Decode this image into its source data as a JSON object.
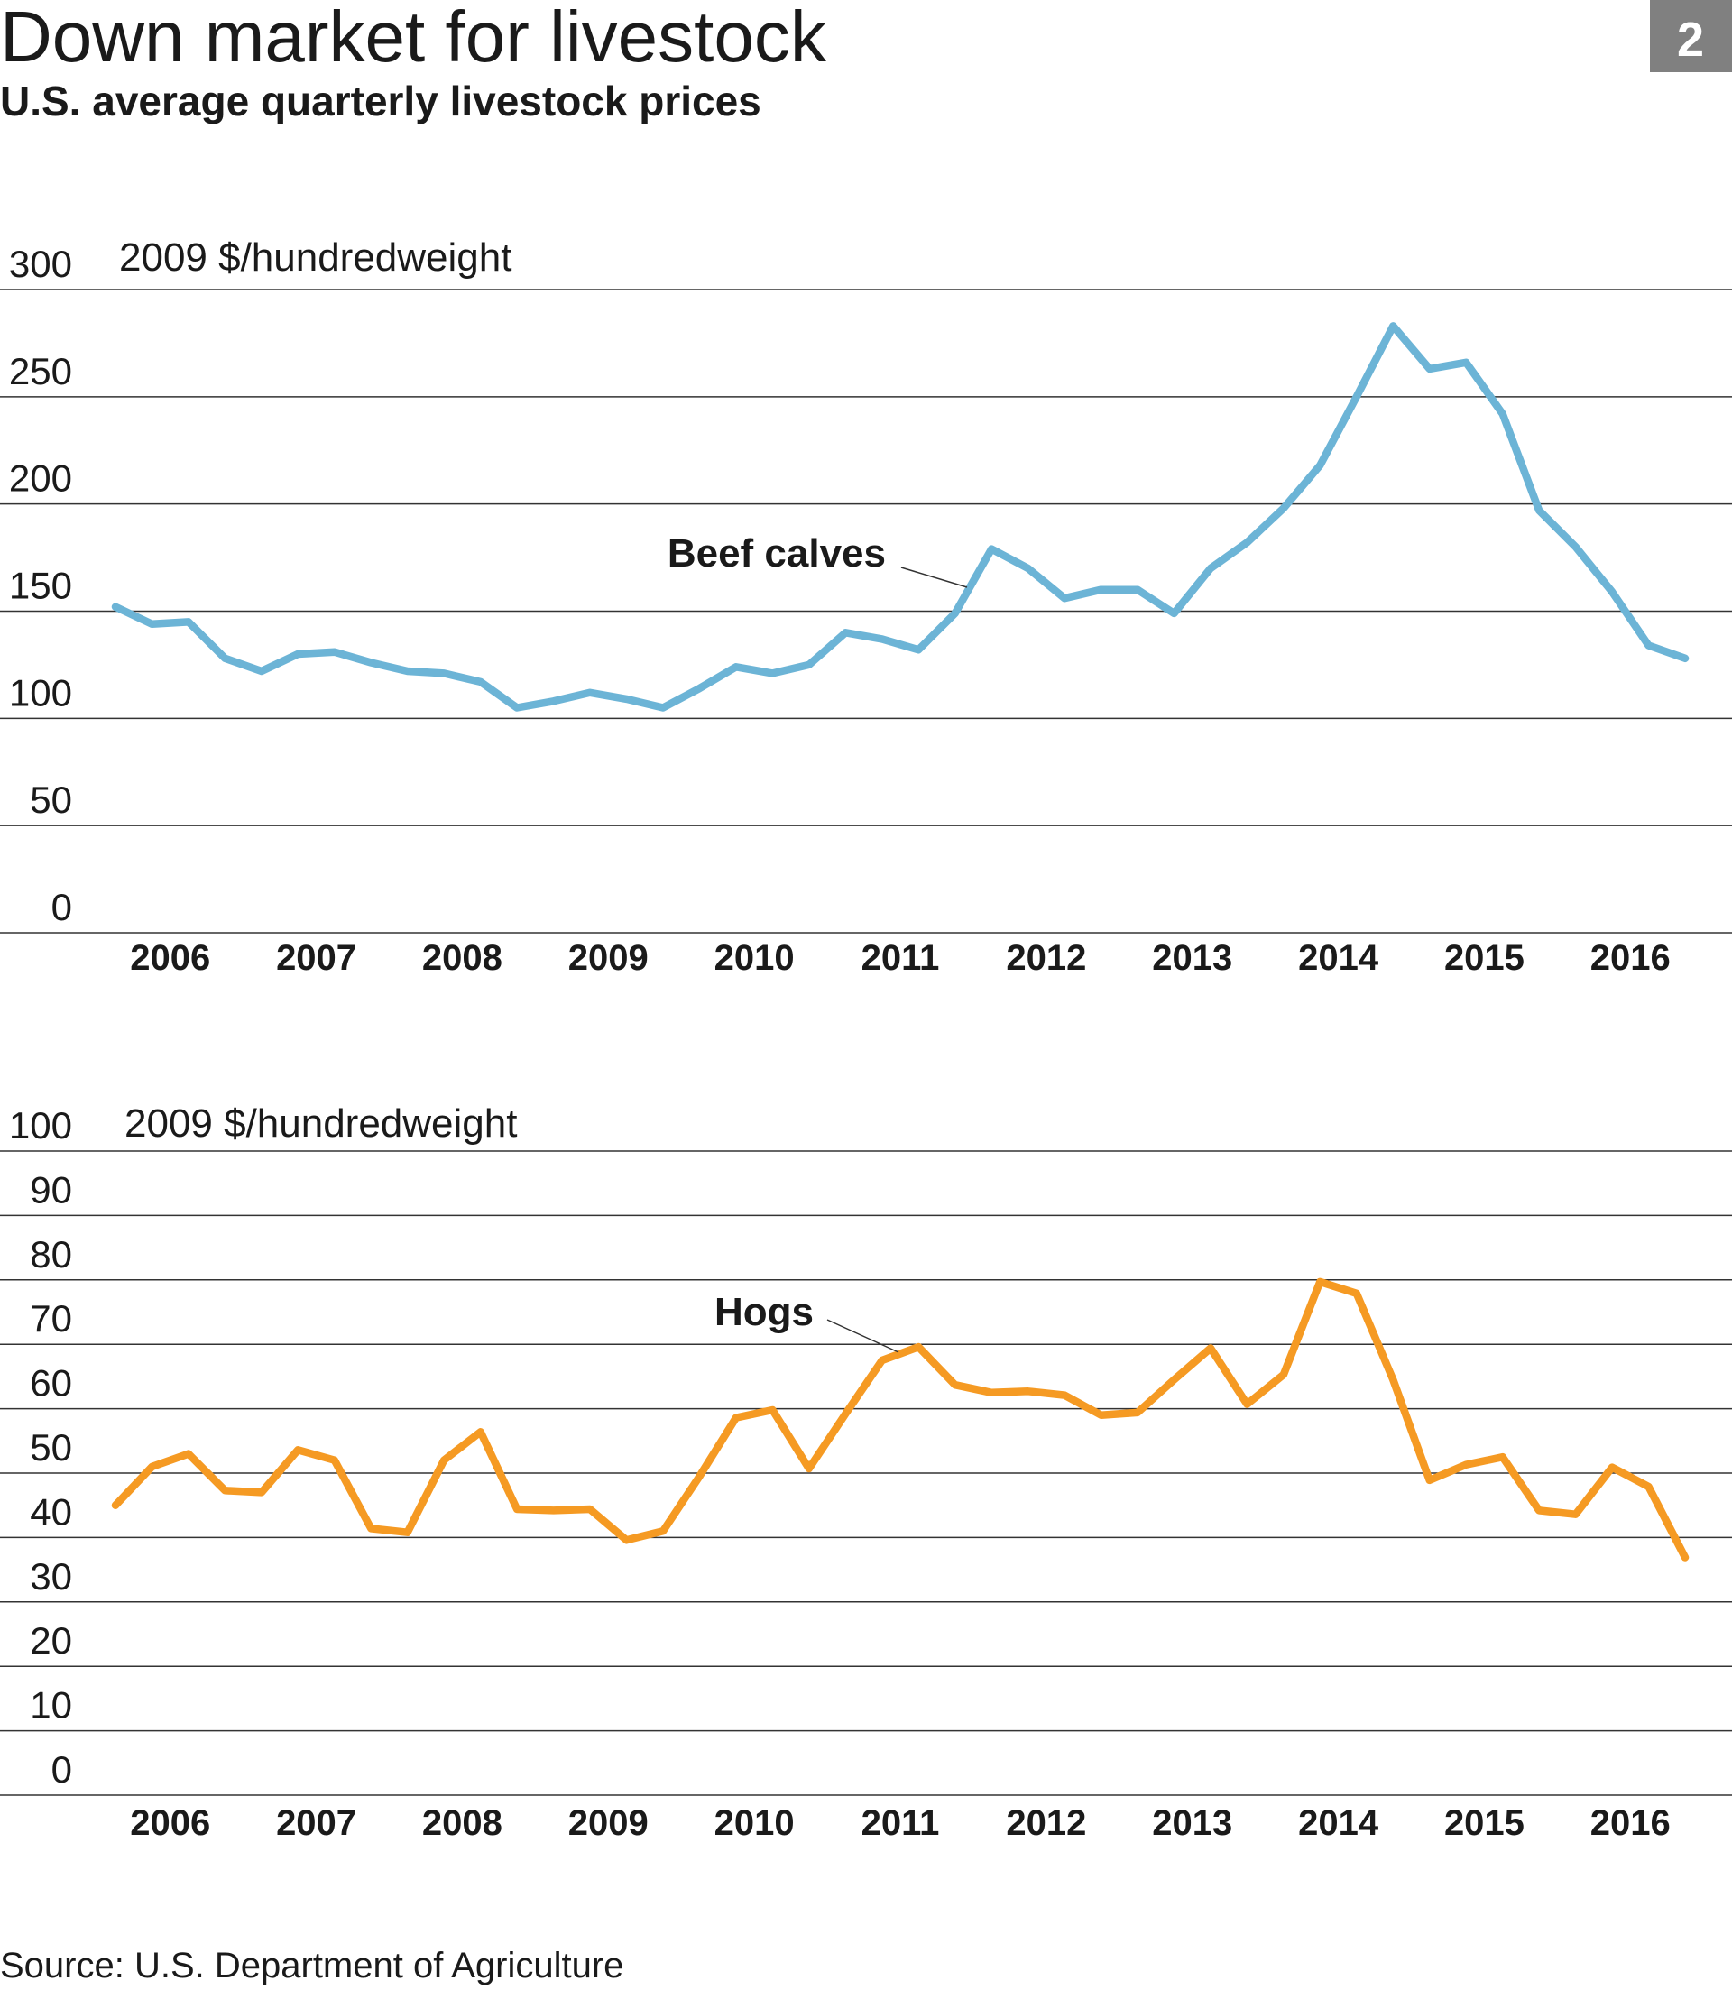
{
  "title": "Down market for livestock",
  "subtitle": "U.S. average quarterly livestock prices",
  "badge": "2",
  "source": "Source: U.S. Department of Agriculture",
  "chart_data": [
    {
      "type": "line",
      "y_label": "2009 $/hundredweight",
      "categories": [
        null,
        "2006",
        null,
        null,
        null,
        "2007",
        null,
        null,
        null,
        "2008",
        null,
        null,
        null,
        "2009",
        null,
        null,
        null,
        "2010",
        null,
        null,
        null,
        "2011",
        null,
        null,
        null,
        "2012",
        null,
        null,
        null,
        "2013",
        null,
        null,
        null,
        "2014",
        null,
        null,
        null,
        "2015",
        null,
        null,
        null,
        "2016",
        null,
        null
      ],
      "series": [
        {
          "name": "Beef calves",
          "color": "#6cb4d6",
          "values": [
            152,
            144,
            145,
            128,
            122,
            130,
            131,
            126,
            122,
            121,
            117,
            105,
            108,
            112,
            109,
            105,
            114,
            124,
            121,
            125,
            140,
            137,
            132,
            149,
            179,
            170,
            156,
            160,
            160,
            149,
            170,
            182,
            198,
            218,
            250,
            283,
            263,
            266,
            242,
            197,
            180,
            159,
            134,
            128
          ]
        }
      ],
      "ylim": [
        0,
        300
      ],
      "yticks": [
        0,
        50,
        100,
        150,
        200,
        250,
        300
      ]
    },
    {
      "type": "line",
      "y_label": "2009 $/hundredweight",
      "categories": [
        null,
        "2006",
        null,
        null,
        null,
        "2007",
        null,
        null,
        null,
        "2008",
        null,
        null,
        null,
        "2009",
        null,
        null,
        null,
        "2010",
        null,
        null,
        null,
        "2011",
        null,
        null,
        null,
        "2012",
        null,
        null,
        null,
        "2013",
        null,
        null,
        null,
        "2014",
        null,
        null,
        null,
        "2015",
        null,
        null,
        null,
        "2016",
        null,
        null
      ],
      "series": [
        {
          "name": "Hogs",
          "color": "#f59a23",
          "values": [
            45,
            51,
            53,
            47.3,
            47,
            53.6,
            52,
            41.4,
            40.8,
            52,
            56.4,
            44.4,
            44.2,
            44.4,
            39.6,
            41,
            49.5,
            58.6,
            59.8,
            50.7,
            59.2,
            67.5,
            69.6,
            63.7,
            62.5,
            62.7,
            62.1,
            59,
            59.4,
            64.5,
            69.4,
            60.7,
            65.3,
            79.7,
            77.9,
            64.5,
            48.9,
            51.3,
            52.5,
            44.2,
            43.6,
            50.9,
            47.9,
            36.9
          ]
        }
      ],
      "ylim": [
        0,
        100
      ],
      "yticks": [
        0,
        10,
        20,
        30,
        40,
        50,
        60,
        70,
        80,
        90,
        100
      ]
    }
  ]
}
